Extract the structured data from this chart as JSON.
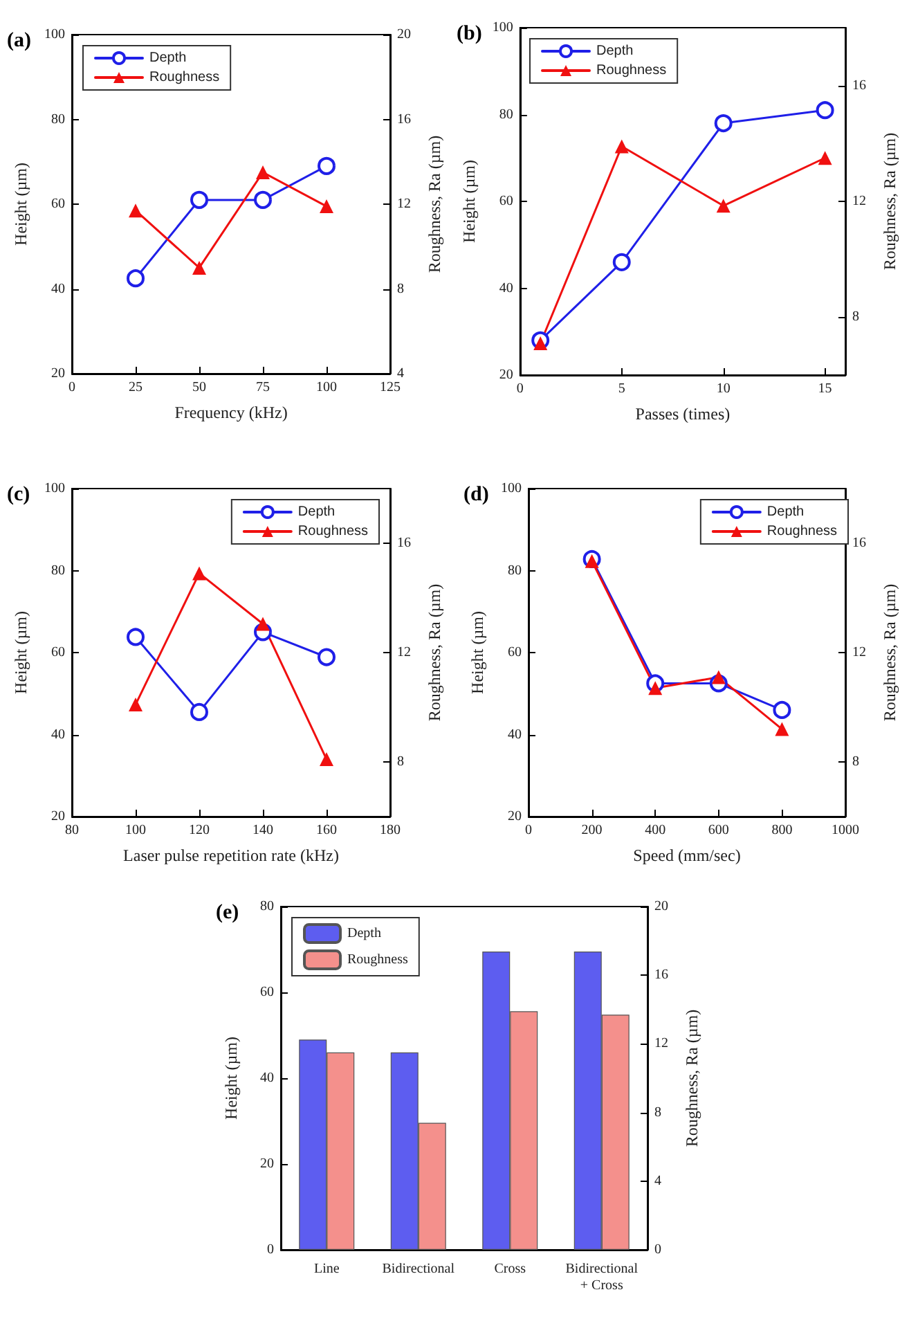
{
  "chart_data": [
    {
      "type": "line",
      "title": "(a)",
      "xlabel": "Frequency (kHz)",
      "ylabel": "Height (µm)",
      "y2label": "Roughness, Ra (µm)",
      "xlim": [
        0,
        125
      ],
      "xticks": [
        0,
        25,
        50,
        75,
        100,
        125
      ],
      "ylim": [
        20,
        100
      ],
      "yticks": [
        20,
        40,
        60,
        80,
        100
      ],
      "y2lim": [
        4,
        20
      ],
      "y2ticks": [
        4,
        8,
        12,
        16,
        20
      ],
      "grid": false,
      "legend": "top left",
      "x": [
        25,
        50,
        75,
        100
      ],
      "series": [
        {
          "name": "Depth",
          "color": "#1f1fe8",
          "marker": "circle",
          "values": [
            42.5,
            61,
            61,
            69
          ]
        },
        {
          "name": "Roughness",
          "color": "#f01010",
          "marker": "triangle",
          "axis": "y2",
          "values": [
            11.7,
            9.0,
            13.5,
            11.9
          ]
        }
      ]
    },
    {
      "type": "line",
      "title": "(b)",
      "xlabel": "Passes (times)",
      "ylabel": "Height (µm)",
      "y2label": "Roughness, Ra (µm)",
      "xlim": [
        0,
        16
      ],
      "xticks": [
        0,
        5,
        10,
        15
      ],
      "ylim": [
        20,
        100
      ],
      "yticks": [
        20,
        40,
        60,
        80,
        100
      ],
      "y2lim": [
        6,
        18
      ],
      "y2ticks": [
        8,
        12,
        16
      ],
      "grid": false,
      "legend": "top left",
      "x": [
        1,
        5,
        10,
        15
      ],
      "series": [
        {
          "name": "Depth",
          "color": "#1f1fe8",
          "marker": "circle",
          "values": [
            28,
            46,
            78,
            81
          ]
        },
        {
          "name": "Roughness",
          "color": "#f01010",
          "marker": "triangle",
          "axis": "y2",
          "values": [
            7.1,
            13.9,
            11.85,
            13.5
          ]
        }
      ]
    },
    {
      "type": "line",
      "title": "(c)",
      "xlabel": "Laser pulse repetition rate (kHz)",
      "ylabel": "Height (µm)",
      "y2label": "Roughness, Ra (µm)",
      "xlim": [
        80,
        180
      ],
      "xticks": [
        80,
        100,
        120,
        140,
        160,
        180
      ],
      "ylim": [
        20,
        100
      ],
      "yticks": [
        20,
        40,
        60,
        80,
        100
      ],
      "y2lim": [
        6,
        18
      ],
      "y2ticks": [
        8,
        12,
        16
      ],
      "grid": false,
      "legend": "top right",
      "x": [
        100,
        120,
        140,
        160
      ],
      "series": [
        {
          "name": "Depth",
          "color": "#1f1fe8",
          "marker": "circle",
          "values": [
            63.8,
            45.5,
            65,
            58.9
          ]
        },
        {
          "name": "Roughness",
          "color": "#f01010",
          "marker": "triangle",
          "axis": "y2",
          "values": [
            10.1,
            14.9,
            13.05,
            8.1
          ]
        }
      ]
    },
    {
      "type": "line",
      "title": "(d)",
      "xlabel": "Speed (mm/sec)",
      "ylabel": "Height (µm)",
      "y2label": "Roughness, Ra (µm)",
      "xlim": [
        0,
        1000
      ],
      "xticks": [
        0,
        200,
        400,
        600,
        800,
        1000
      ],
      "ylim": [
        20,
        100
      ],
      "yticks": [
        20,
        40,
        60,
        80,
        100
      ],
      "y2lim": [
        6,
        18
      ],
      "y2ticks": [
        8,
        12,
        16
      ],
      "grid": false,
      "legend": "top right",
      "x": [
        200,
        400,
        600,
        800
      ],
      "series": [
        {
          "name": "Depth",
          "color": "#1f1fe8",
          "marker": "circle",
          "values": [
            82.8,
            52.5,
            52.5,
            46
          ]
        },
        {
          "name": "Roughness",
          "color": "#f01010",
          "marker": "triangle",
          "axis": "y2",
          "values": [
            15.35,
            10.7,
            11.1,
            9.2
          ]
        }
      ]
    },
    {
      "type": "bar",
      "title": "(e)",
      "ylabel": "Height (µm)",
      "y2label": "Roughness, Ra (µm)",
      "categories": [
        "Line",
        "Bidirectional",
        "Cross",
        "Bidirectional\n+ Cross"
      ],
      "ylim": [
        0,
        80
      ],
      "yticks": [
        0,
        20,
        40,
        60,
        80
      ],
      "y2lim": [
        0,
        20
      ],
      "y2ticks": [
        0,
        4,
        8,
        12,
        16,
        20
      ],
      "grid": false,
      "legend": "top left",
      "series": [
        {
          "name": "Depth",
          "color": "#5d5df0",
          "values": [
            49,
            46,
            69.5,
            69.5
          ]
        },
        {
          "name": "Roughness",
          "color": "#f4908c",
          "axis": "y2",
          "values": [
            11.5,
            7.4,
            13.9,
            13.7
          ]
        }
      ]
    }
  ]
}
